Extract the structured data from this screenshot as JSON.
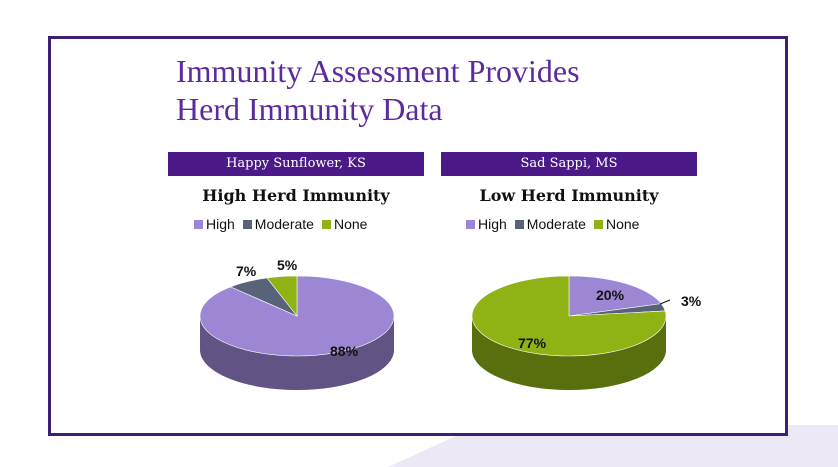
{
  "slide": {
    "title_line1": "Immunity Assessment Provides",
    "title_line2": "Herd Immunity Data"
  },
  "colors": {
    "frame": "#3d1f73",
    "title": "#5c2a9d",
    "banner": "#4b1a88",
    "high": "#9d86d4",
    "moderate": "#58637a",
    "none": "#8fb214"
  },
  "chart_data": [
    {
      "type": "pie",
      "banner": "Happy Sunflower, KS",
      "title": "High Herd Immunity",
      "legend": [
        "High",
        "Moderate",
        "None"
      ],
      "labels": [
        "High",
        "Moderate",
        "None"
      ],
      "values": [
        88,
        7,
        5
      ],
      "value_labels": [
        "88%",
        "7%",
        "5%"
      ],
      "legend_position": "top"
    },
    {
      "type": "pie",
      "banner": "Sad Sappi, MS",
      "title": "Low Herd Immunity",
      "legend": [
        "High",
        "Moderate",
        "None"
      ],
      "labels": [
        "High",
        "Moderate",
        "None"
      ],
      "values": [
        20,
        3,
        77
      ],
      "value_labels": [
        "20%",
        "3%",
        "77%"
      ],
      "legend_position": "top"
    }
  ]
}
